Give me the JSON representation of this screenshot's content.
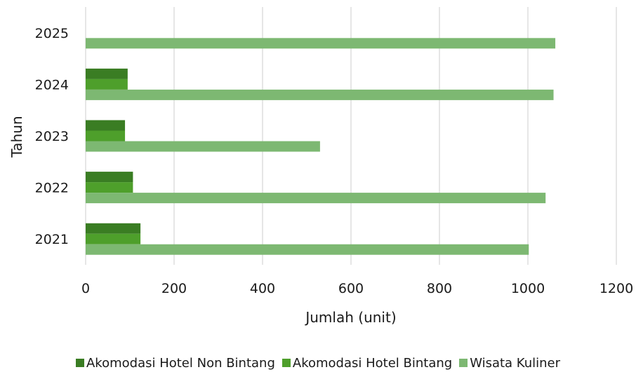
{
  "chart_data": {
    "type": "bar",
    "orientation": "horizontal",
    "categories": [
      "2021",
      "2022",
      "2023",
      "2024",
      "2025"
    ],
    "series": [
      {
        "name": "Akomodasi Hotel Non Bintang",
        "values": [
          124,
          107,
          89,
          95,
          null
        ],
        "color": "#3a7d23"
      },
      {
        "name": "Akomodasi Hotel Bintang",
        "values": [
          124,
          107,
          89,
          95,
          null
        ],
        "color": "#4e9f2b"
      },
      {
        "name": "Wisata Kuliner",
        "values": [
          1002,
          1040,
          530,
          1058,
          1062
        ],
        "color": "#7db872"
      }
    ],
    "xlabel": "Jumlah (unit)",
    "ylabel": "Tahun",
    "xlim": [
      0,
      1200
    ],
    "xticks": [
      "0",
      "200",
      "400",
      "600",
      "800",
      "1000",
      "1200"
    ],
    "grid": "vertical",
    "legend_position": "bottom"
  }
}
